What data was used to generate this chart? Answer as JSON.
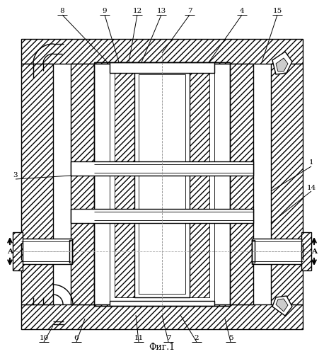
{
  "title": "Фиг.1",
  "bg": "#ffffff",
  "lc": "#000000",
  "fw": 4.58,
  "fh": 5.0,
  "dpi": 100
}
